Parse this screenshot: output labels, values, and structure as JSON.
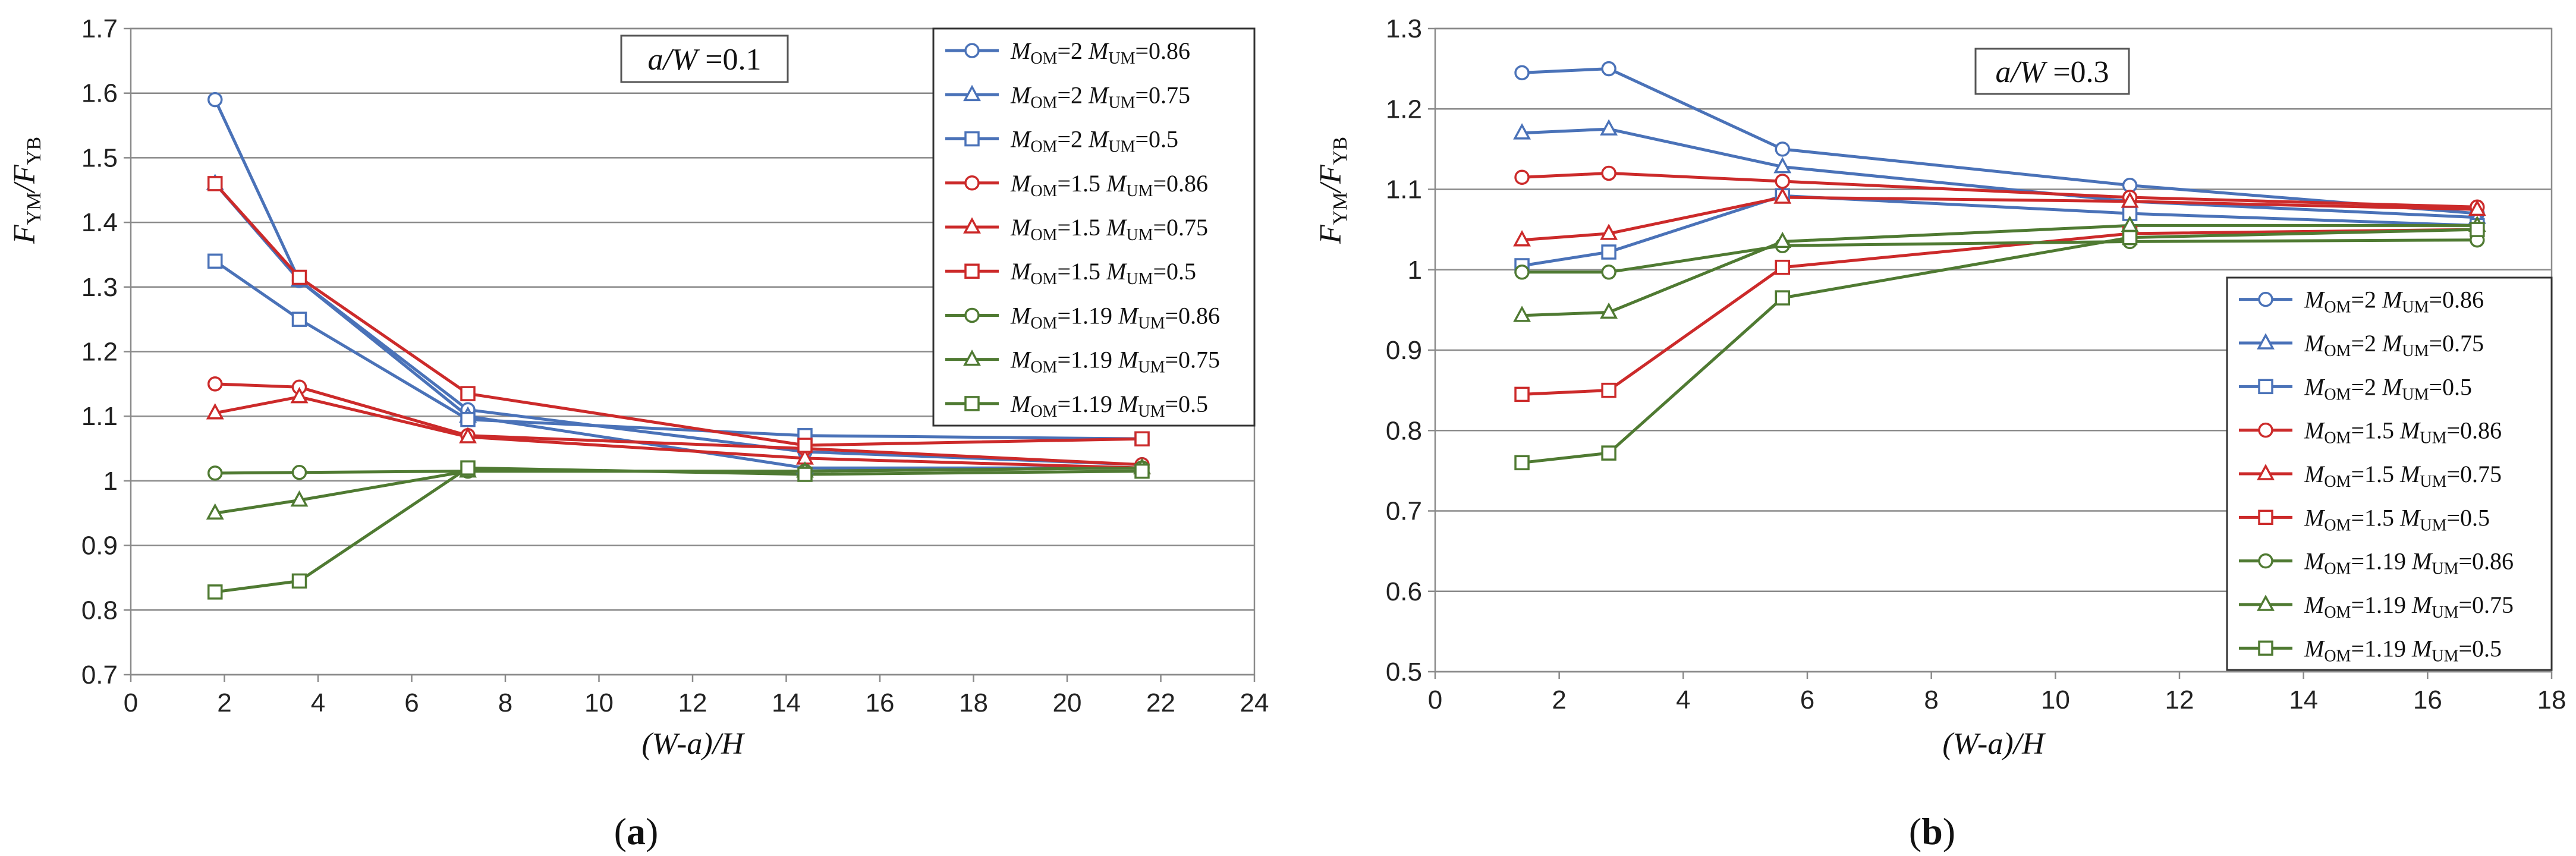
{
  "colors": {
    "blue": "#4a72b8",
    "red": "#cc2a2a",
    "green": "#4f7a32",
    "grid": "#8a8a8a",
    "frame": "#8a8a8a"
  },
  "chart_data": [
    {
      "type": "line",
      "panel_label": "(a)",
      "annotation": "a/W =0.1",
      "xlabel": "(W-a)/H",
      "ylabel": "FYM/FYB",
      "xlim": [
        0,
        24
      ],
      "ylim": [
        0.7,
        1.7
      ],
      "xticks": [
        0,
        2,
        4,
        6,
        8,
        10,
        12,
        14,
        16,
        18,
        20,
        22,
        24
      ],
      "yticks": [
        0.7,
        0.8,
        0.9,
        1,
        1.1,
        1.2,
        1.3,
        1.4,
        1.5,
        1.6,
        1.7
      ],
      "ytick_labels": [
        "0.7",
        "0.8",
        "0.9",
        "1",
        "1.1",
        "1.2",
        "1.3",
        "1.4",
        "1.5",
        "1.6",
        "1.7"
      ],
      "legend_position": "top-right",
      "x": [
        1.8,
        3.6,
        7.2,
        14.4,
        21.6
      ],
      "series": [
        {
          "name": "MOM=2 MUM=0.86",
          "mom": "2",
          "mum": "0.86",
          "color": "blue",
          "marker": "circle",
          "values": [
            1.59,
            1.31,
            1.11,
            1.045,
            1.025
          ]
        },
        {
          "name": "MOM=2 MUM=0.75",
          "mom": "2",
          "mum": "0.75",
          "color": "blue",
          "marker": "triangle",
          "values": [
            1.46,
            1.31,
            1.1,
            1.02,
            1.02
          ]
        },
        {
          "name": "MOM=2 MUM=0.5",
          "mom": "2",
          "mum": "0.5",
          "color": "blue",
          "marker": "square",
          "values": [
            1.34,
            1.25,
            1.095,
            1.07,
            1.065
          ]
        },
        {
          "name": "MOM=1.5 MUM=0.86",
          "mom": "1.5",
          "mum": "0.86",
          "color": "red",
          "marker": "circle",
          "values": [
            1.15,
            1.145,
            1.07,
            1.05,
            1.025
          ]
        },
        {
          "name": "MOM=1.5 MUM=0.75",
          "mom": "1.5",
          "mum": "0.75",
          "color": "red",
          "marker": "triangle",
          "values": [
            1.105,
            1.13,
            1.068,
            1.035,
            1.02
          ]
        },
        {
          "name": "MOM=1.5 MUM=0.5",
          "mom": "1.5",
          "mum": "0.5",
          "color": "red",
          "marker": "square",
          "values": [
            1.46,
            1.315,
            1.135,
            1.055,
            1.065
          ]
        },
        {
          "name": "MOM=1.19 MUM=0.86",
          "mom": "1.19",
          "mum": "0.86",
          "color": "green",
          "marker": "circle",
          "values": [
            1.012,
            1.013,
            1.015,
            1.015,
            1.02
          ]
        },
        {
          "name": "MOM=1.19 MUM=0.75",
          "mom": "1.19",
          "mum": "0.75",
          "color": "green",
          "marker": "triangle",
          "values": [
            0.95,
            0.97,
            1.015,
            1.015,
            1.02
          ]
        },
        {
          "name": "MOM=1.19 MUM=0.5",
          "mom": "1.19",
          "mum": "0.5",
          "color": "green",
          "marker": "square",
          "values": [
            0.828,
            0.845,
            1.02,
            1.01,
            1.015
          ]
        }
      ]
    },
    {
      "type": "line",
      "panel_label": "(b)",
      "annotation": "a/W =0.3",
      "xlabel": "(W-a)/H",
      "ylabel": "FYM/FYB",
      "xlim": [
        0,
        18
      ],
      "ylim": [
        0.5,
        1.3
      ],
      "xticks": [
        0,
        2,
        4,
        6,
        8,
        10,
        12,
        14,
        16,
        18
      ],
      "yticks": [
        0.5,
        0.6,
        0.7,
        0.8,
        0.9,
        1,
        1.1,
        1.2,
        1.3
      ],
      "ytick_labels": [
        "0.5",
        "0.6",
        "0.7",
        "0.8",
        "0.9",
        "1",
        "1.1",
        "1.2",
        "1.3"
      ],
      "legend_position": "bottom-right",
      "x": [
        1.4,
        2.8,
        5.6,
        11.2,
        16.8
      ],
      "series": [
        {
          "name": "MOM=2 MUM=0.86",
          "mom": "2",
          "mum": "0.86",
          "color": "blue",
          "marker": "circle",
          "values": [
            1.245,
            1.25,
            1.15,
            1.105,
            1.07
          ]
        },
        {
          "name": "MOM=2 MUM=0.75",
          "mom": "2",
          "mum": "0.75",
          "color": "blue",
          "marker": "triangle",
          "values": [
            1.17,
            1.175,
            1.128,
            1.085,
            1.065
          ]
        },
        {
          "name": "MOM=2 MUM=0.5",
          "mom": "2",
          "mum": "0.5",
          "color": "blue",
          "marker": "square",
          "values": [
            1.005,
            1.022,
            1.092,
            1.07,
            1.055
          ]
        },
        {
          "name": "MOM=1.5 MUM=0.86",
          "mom": "1.5",
          "mum": "0.86",
          "color": "red",
          "marker": "circle",
          "values": [
            1.115,
            1.12,
            1.11,
            1.09,
            1.078
          ]
        },
        {
          "name": "MOM=1.5 MUM=0.75",
          "mom": "1.5",
          "mum": "0.75",
          "color": "red",
          "marker": "triangle",
          "values": [
            1.037,
            1.045,
            1.09,
            1.085,
            1.075
          ]
        },
        {
          "name": "MOM=1.5 MUM=0.5",
          "mom": "1.5",
          "mum": "0.5",
          "color": "red",
          "marker": "square",
          "values": [
            0.845,
            0.85,
            1.003,
            1.045,
            1.05
          ]
        },
        {
          "name": "MOM=1.19 MUM=0.86",
          "mom": "1.19",
          "mum": "0.86",
          "color": "green",
          "marker": "circle",
          "values": [
            0.997,
            0.997,
            1.03,
            1.035,
            1.037
          ]
        },
        {
          "name": "MOM=1.19 MUM=0.75",
          "mom": "1.19",
          "mum": "0.75",
          "color": "green",
          "marker": "triangle",
          "values": [
            0.943,
            0.947,
            1.035,
            1.055,
            1.055
          ]
        },
        {
          "name": "MOM=1.19 MUM=0.5",
          "mom": "1.19",
          "mum": "0.5",
          "color": "green",
          "marker": "square",
          "values": [
            0.76,
            0.772,
            0.965,
            1.04,
            1.05
          ]
        }
      ]
    }
  ]
}
